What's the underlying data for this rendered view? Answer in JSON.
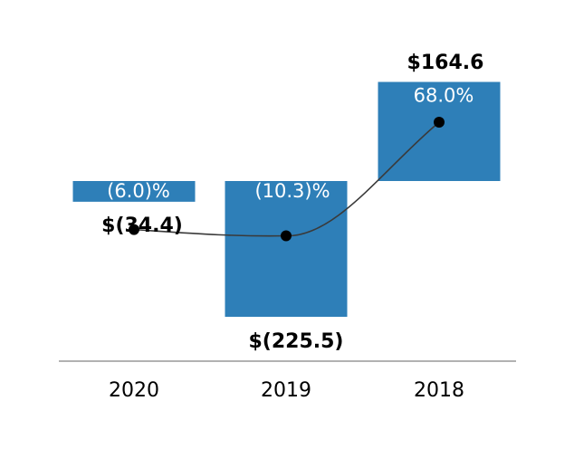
{
  "chart_data": {
    "type": "bar",
    "categories": [
      "2020",
      "2019",
      "2018"
    ],
    "series": [
      {
        "values": [
          -34.4,
          -225.5,
          164.6
        ]
      },
      {
        "values": [
          -6.0,
          -10.3,
          68.0
        ]
      }
    ],
    "value_labels": [
      "$(34.4)",
      "$(225.5)",
      "$164.6"
    ],
    "margin_labels": [
      "(6.0)%",
      "(10.3)%",
      "68.0%"
    ],
    "grid": false,
    "legend": "none",
    "colors": {
      "bar": "#2e7fb8",
      "line": "#3a3a3a",
      "marker": "#000000",
      "axis": "#999999",
      "value_text": "#000000",
      "margin_text": "#ffffff"
    }
  }
}
